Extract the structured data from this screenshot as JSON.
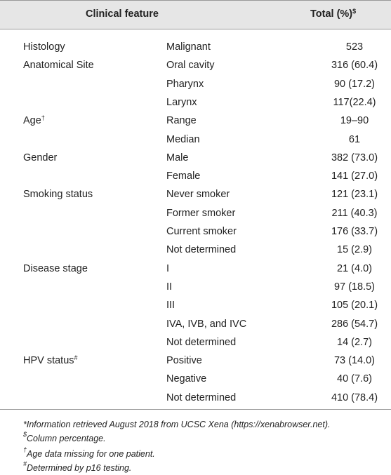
{
  "header": {
    "feature": "Clinical feature",
    "total": "Total (%)",
    "total_mark": "$"
  },
  "table": {
    "rows": [
      {
        "feature": "Histology",
        "level": "Malignant",
        "total": "523"
      },
      {
        "feature": "Anatomical Site",
        "level": "Oral cavity",
        "total": "316 (60.4)"
      },
      {
        "feature": null,
        "level": "Pharynx",
        "total": "90 (17.2)"
      },
      {
        "feature": null,
        "level": "Larynx",
        "total": "117(22.4)"
      },
      {
        "feature": "Age",
        "mark": "†",
        "level": "Range",
        "total": "19–90"
      },
      {
        "feature": null,
        "level": "Median",
        "total": "61"
      },
      {
        "feature": "Gender",
        "level": "Male",
        "total": "382 (73.0)"
      },
      {
        "feature": null,
        "level": "Female",
        "total": "141 (27.0)"
      },
      {
        "feature": "Smoking status",
        "level": "Never smoker",
        "total": "121 (23.1)"
      },
      {
        "feature": null,
        "level": "Former smoker",
        "total": "211 (40.3)"
      },
      {
        "feature": null,
        "level": "Current smoker",
        "total": "176 (33.7)"
      },
      {
        "feature": null,
        "level": "Not determined",
        "total": "15 (2.9)"
      },
      {
        "feature": "Disease stage",
        "level": "I",
        "total": "21 (4.0)"
      },
      {
        "feature": null,
        "level": "II",
        "total": "97 (18.5)"
      },
      {
        "feature": null,
        "level": "III",
        "total": "105 (20.1)"
      },
      {
        "feature": null,
        "level": "IVA, IVB, and IVC",
        "total": "286 (54.7)"
      },
      {
        "feature": null,
        "level": "Not determined",
        "total": "14 (2.7)"
      },
      {
        "feature": "HPV status",
        "mark": "#",
        "level": "Positive",
        "total": "73 (14.0)"
      },
      {
        "feature": null,
        "level": "Negative",
        "total": "40 (7.6)"
      },
      {
        "feature": null,
        "level": "Not determined",
        "total": "410 (78.4)"
      }
    ]
  },
  "footnotes": [
    {
      "text": "*Information retrieved August 2018 from UCSC Xena (https://xenabrowser.net)."
    },
    {
      "mark": "$",
      "text": "Column percentage."
    },
    {
      "mark": "†",
      "text": "Age data missing for one patient."
    },
    {
      "mark": "#",
      "text": "Determined by p16 testing."
    }
  ]
}
